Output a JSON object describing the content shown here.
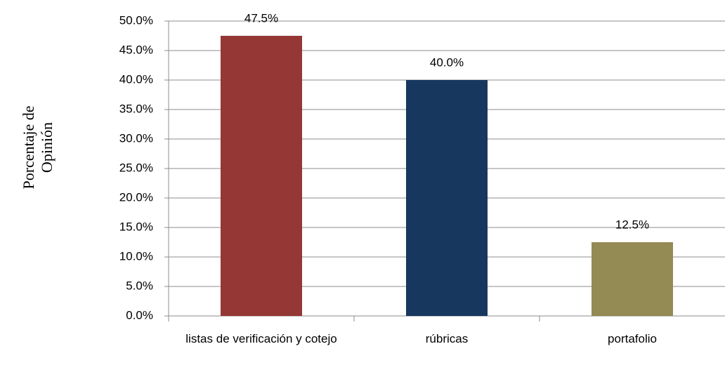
{
  "chart_data": {
    "type": "bar",
    "ylabel": [
      "Porcentaje de",
      "Opinión"
    ],
    "categories": [
      "listas de verificación y cotejo",
      "rúbricas",
      "portafolio"
    ],
    "values": [
      47.5,
      40.0,
      12.5
    ],
    "value_labels": [
      "47.5%",
      "40.0%",
      "12.5%"
    ],
    "colors": [
      "#953735",
      "#17375e",
      "#948a54"
    ],
    "ylim": [
      0,
      50
    ],
    "yticks": [
      {
        "value": 0,
        "label": "0.0%"
      },
      {
        "value": 5,
        "label": "5.0%"
      },
      {
        "value": 10,
        "label": "10.0%"
      },
      {
        "value": 15,
        "label": "15.0%"
      },
      {
        "value": 20,
        "label": "20.0%"
      },
      {
        "value": 25,
        "label": "25.0%"
      },
      {
        "value": 30,
        "label": "30.0%"
      },
      {
        "value": 35,
        "label": "35.0%"
      },
      {
        "value": 40,
        "label": "40.0%"
      },
      {
        "value": 45,
        "label": "45.0%"
      },
      {
        "value": 50,
        "label": "50.0%"
      }
    ],
    "grid": true
  }
}
